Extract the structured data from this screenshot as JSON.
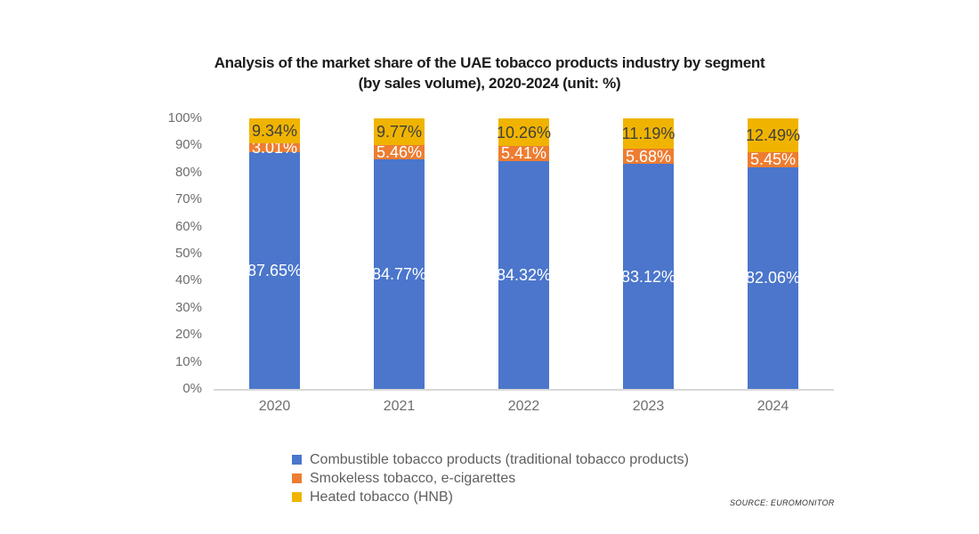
{
  "title": {
    "line1": "Analysis of the market share of the UAE tobacco products industry by segment",
    "line2": "(by sales volume), 2020-2024 (unit: %)"
  },
  "source": "SOURCE: EUROMONITOR",
  "chart_data": {
    "type": "bar",
    "stacked": true,
    "title": "Analysis of the market share of the UAE tobacco products industry by segment (by sales volume), 2020-2024 (unit: %)",
    "categories": [
      "2020",
      "2021",
      "2022",
      "2023",
      "2024"
    ],
    "series": [
      {
        "name": "Combustible tobacco products (traditional tobacco products)",
        "color": "#4B76CB",
        "label_color": "#FFFFFF",
        "values": [
          87.65,
          84.77,
          84.32,
          83.12,
          82.06
        ]
      },
      {
        "name": "Smokeless tobacco, e-cigarettes",
        "color": "#ED7D31",
        "label_color": "#FFFFFF",
        "values": [
          3.01,
          5.46,
          5.41,
          5.68,
          5.45
        ]
      },
      {
        "name": "Heated tobacco (HNB)",
        "color": "#F0B400",
        "label_color": "#3F3F3F",
        "values": [
          9.34,
          9.77,
          10.26,
          11.19,
          12.49
        ]
      }
    ],
    "y_ticks": [
      "100%",
      "90%",
      "80%",
      "70%",
      "60%",
      "50%",
      "40%",
      "30%",
      "20%",
      "10%",
      "0%"
    ],
    "ylim": [
      0,
      100
    ],
    "grid": false,
    "legend_position": "bottom"
  }
}
